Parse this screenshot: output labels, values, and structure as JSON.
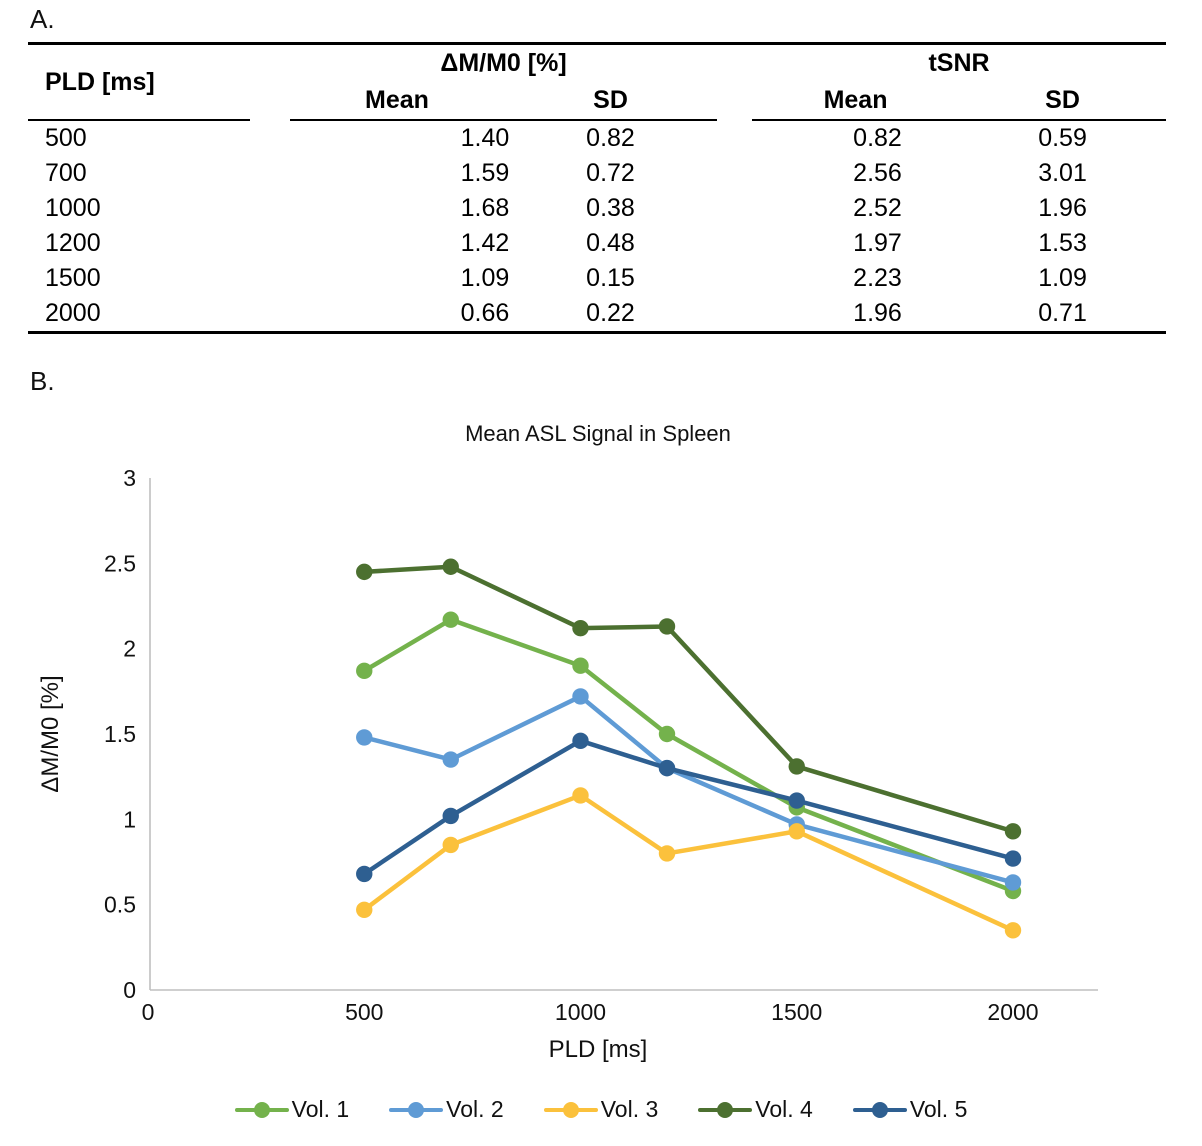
{
  "panel_a": {
    "label": "A."
  },
  "panel_b": {
    "label": "B."
  },
  "table": {
    "pld_header": "PLD [ms]",
    "group_headers": [
      "ΔM/M0 [%]",
      "tSNR"
    ],
    "sub_headers": [
      "Mean",
      "SD",
      "Mean",
      "SD"
    ],
    "rows": [
      {
        "pld": "500",
        "dm_mean": "1.40",
        "dm_sd": "0.82",
        "tsnr_mean": "0.82",
        "tsnr_sd": "0.59"
      },
      {
        "pld": "700",
        "dm_mean": "1.59",
        "dm_sd": "0.72",
        "tsnr_mean": "2.56",
        "tsnr_sd": "3.01"
      },
      {
        "pld": "1000",
        "dm_mean": "1.68",
        "dm_sd": "0.38",
        "tsnr_mean": "2.52",
        "tsnr_sd": "1.96"
      },
      {
        "pld": "1200",
        "dm_mean": "1.42",
        "dm_sd": "0.48",
        "tsnr_mean": "1.97",
        "tsnr_sd": "1.53"
      },
      {
        "pld": "1500",
        "dm_mean": "1.09",
        "dm_sd": "0.15",
        "tsnr_mean": "2.23",
        "tsnr_sd": "1.09"
      },
      {
        "pld": "2000",
        "dm_mean": "0.66",
        "dm_sd": "0.22",
        "tsnr_mean": "1.96",
        "tsnr_sd": "0.71"
      }
    ]
  },
  "chart_data": {
    "type": "line",
    "title": "Mean ASL Signal in Spleen",
    "xlabel": "PLD [ms]",
    "ylabel": "ΔM/M0 [%]",
    "x": [
      500,
      700,
      1000,
      1200,
      1500,
      2000
    ],
    "xlim": [
      0,
      2200
    ],
    "ylim": [
      0,
      3
    ],
    "x_ticks": [
      0,
      500,
      1000,
      1500,
      2000
    ],
    "y_ticks": [
      0,
      0.5,
      1,
      1.5,
      2,
      2.5,
      3
    ],
    "grid": false,
    "legend_position": "bottom",
    "marker": "circle",
    "axis_color": "#bfbfbf",
    "series": [
      {
        "name": "Vol. 1",
        "color": "#74B24C",
        "values": [
          1.87,
          2.17,
          1.9,
          1.5,
          1.07,
          0.58
        ]
      },
      {
        "name": "Vol. 2",
        "color": "#5F9BD5",
        "values": [
          1.48,
          1.35,
          1.72,
          1.3,
          0.97,
          0.63
        ]
      },
      {
        "name": "Vol. 3",
        "color": "#FBC13C",
        "values": [
          0.47,
          0.85,
          1.14,
          0.8,
          0.93,
          0.35
        ]
      },
      {
        "name": "Vol. 4",
        "color": "#4C7030",
        "values": [
          2.45,
          2.48,
          2.12,
          2.13,
          1.31,
          0.93
        ]
      },
      {
        "name": "Vol. 5",
        "color": "#2E5F91",
        "values": [
          0.68,
          1.02,
          1.46,
          1.3,
          1.11,
          0.77
        ]
      }
    ]
  }
}
